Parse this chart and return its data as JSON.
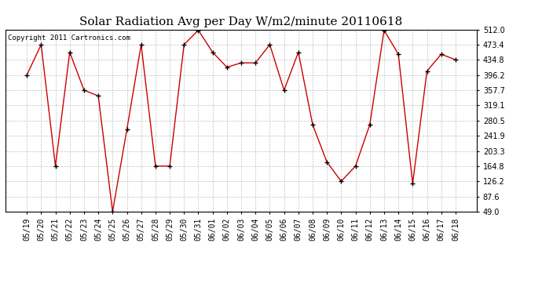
{
  "title": "Solar Radiation Avg per Day W/m2/minute 20110618",
  "copyright": "Copyright 2011 Cartronics.com",
  "dates": [
    "05/19",
    "05/20",
    "05/21",
    "05/22",
    "05/23",
    "05/24",
    "05/25",
    "05/26",
    "05/27",
    "05/28",
    "05/29",
    "05/30",
    "05/31",
    "06/01",
    "06/02",
    "06/03",
    "06/04",
    "06/05",
    "06/06",
    "06/07",
    "06/08",
    "06/09",
    "06/10",
    "06/11",
    "06/12",
    "06/13",
    "06/14",
    "06/15",
    "06/16",
    "06/17",
    "06/18"
  ],
  "values": [
    396.2,
    473.4,
    164.8,
    454.0,
    357.7,
    343.0,
    49.0,
    258.0,
    473.4,
    164.8,
    164.8,
    473.4,
    510.0,
    454.0,
    416.0,
    427.0,
    427.0,
    473.4,
    357.7,
    454.0,
    270.0,
    175.0,
    126.2,
    164.8,
    270.0,
    510.0,
    449.0,
    120.0,
    406.0,
    449.0,
    434.8
  ],
  "ylim": [
    49.0,
    512.0
  ],
  "yticks": [
    49.0,
    87.6,
    126.2,
    164.8,
    203.3,
    241.9,
    280.5,
    319.1,
    357.7,
    396.2,
    434.8,
    473.4,
    512.0
  ],
  "line_color": "#cc0000",
  "marker_color": "#000000",
  "background_color": "#ffffff",
  "grid_color": "#bbbbbb",
  "title_fontsize": 11,
  "tick_fontsize": 7,
  "copyright_fontsize": 6.5
}
